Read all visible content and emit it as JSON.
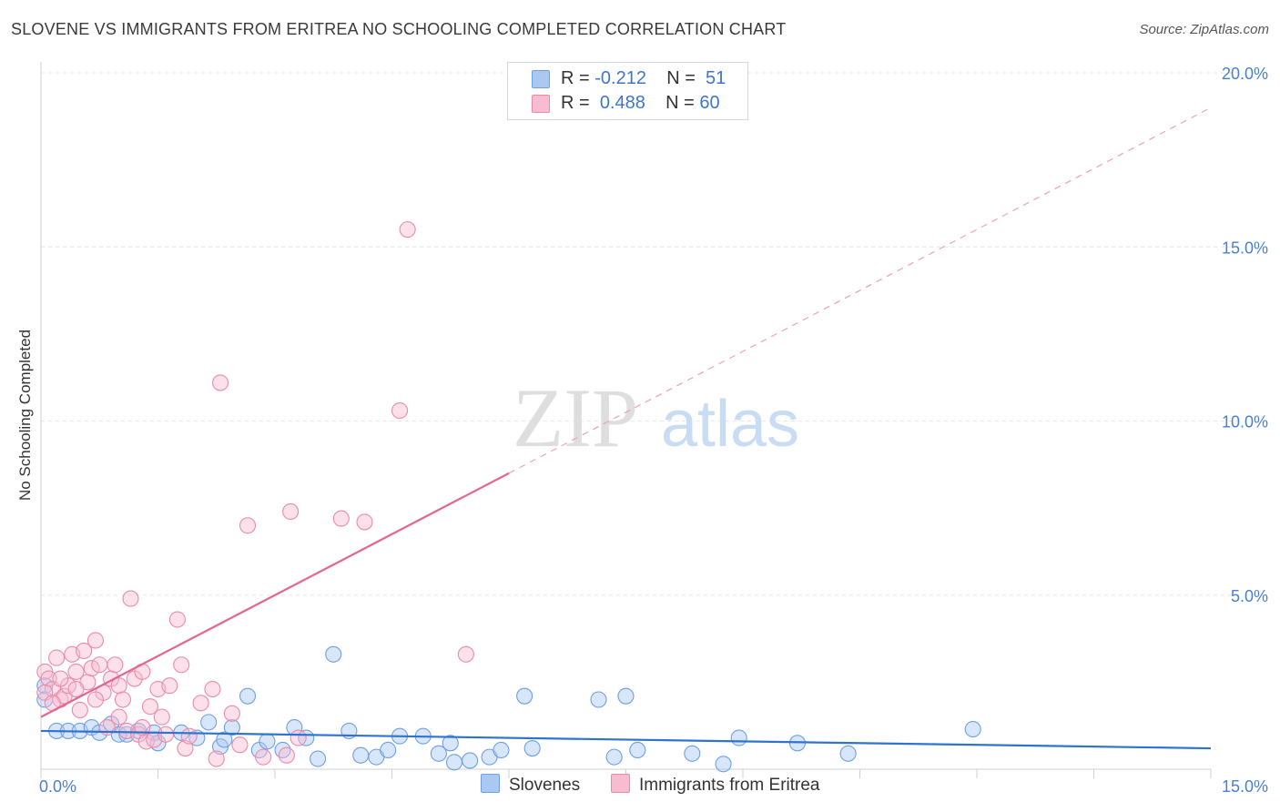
{
  "title": "SLOVENE VS IMMIGRANTS FROM ERITREA NO SCHOOLING COMPLETED CORRELATION CHART",
  "source": "Source: ZipAtlas.com",
  "watermark": {
    "zip": "ZIP",
    "atlas": "atlas"
  },
  "legend_stats": [
    {
      "r_label": "R =",
      "r_value": "-0.212",
      "n_label": "N =",
      "n_value": "51",
      "color": "#a9c8f2",
      "border": "#6f9fe0"
    },
    {
      "r_label": "R =",
      "r_value": "0.488",
      "n_label": "N =",
      "n_value": "60",
      "color": "#f8bcd0",
      "border": "#ea8aa9"
    }
  ],
  "chart_data": {
    "type": "scatter",
    "title": "SLOVENE VS IMMIGRANTS FROM ERITREA NO SCHOOLING COMPLETED CORRELATION CHART",
    "xlabel": "",
    "ylabel": "No Schooling Completed",
    "xlim": [
      0,
      15
    ],
    "ylim": [
      0,
      20
    ],
    "x_ticks": [
      "0.0%",
      "15.0%"
    ],
    "y_ticks": [
      {
        "value": 5,
        "label": "5.0%"
      },
      {
        "value": 10,
        "label": "10.0%"
      },
      {
        "value": 15,
        "label": "15.0%"
      },
      {
        "value": 20,
        "label": "20.0%"
      }
    ],
    "grid": true,
    "legend_position": "bottom-center",
    "series": [
      {
        "name": "Slovenes",
        "color": "#6f9fe0",
        "fill": "rgba(169,200,242,0.45)",
        "trend": {
          "x": [
            0,
            15
          ],
          "y": [
            1.1,
            0.6
          ]
        },
        "points": [
          [
            0.05,
            2.4
          ],
          [
            0.2,
            1.1
          ],
          [
            0.35,
            1.1
          ],
          [
            0.5,
            1.1
          ],
          [
            0.65,
            1.2
          ],
          [
            0.75,
            1.05
          ],
          [
            0.9,
            1.3
          ],
          [
            1.0,
            1.0
          ],
          [
            1.1,
            1.0
          ],
          [
            1.25,
            1.1
          ],
          [
            1.45,
            1.05
          ],
          [
            1.5,
            0.75
          ],
          [
            1.8,
            1.05
          ],
          [
            2.0,
            0.9
          ],
          [
            2.15,
            1.35
          ],
          [
            2.3,
            0.65
          ],
          [
            2.35,
            0.85
          ],
          [
            2.45,
            1.2
          ],
          [
            2.65,
            2.1
          ],
          [
            2.8,
            0.55
          ],
          [
            2.9,
            0.8
          ],
          [
            3.1,
            0.55
          ],
          [
            3.25,
            1.2
          ],
          [
            3.4,
            0.9
          ],
          [
            3.55,
            0.3
          ],
          [
            3.75,
            3.3
          ],
          [
            3.95,
            1.1
          ],
          [
            4.1,
            0.4
          ],
          [
            4.3,
            0.35
          ],
          [
            4.45,
            0.55
          ],
          [
            4.6,
            0.95
          ],
          [
            4.9,
            0.95
          ],
          [
            5.1,
            0.45
          ],
          [
            5.25,
            0.75
          ],
          [
            5.3,
            0.2
          ],
          [
            5.5,
            0.25
          ],
          [
            5.75,
            0.35
          ],
          [
            5.9,
            0.55
          ],
          [
            6.2,
            2.1
          ],
          [
            6.3,
            0.6
          ],
          [
            7.15,
            2.0
          ],
          [
            7.35,
            0.35
          ],
          [
            7.5,
            2.1
          ],
          [
            7.65,
            0.55
          ],
          [
            8.35,
            0.45
          ],
          [
            8.75,
            0.15
          ],
          [
            8.95,
            0.9
          ],
          [
            9.7,
            0.75
          ],
          [
            10.35,
            0.45
          ],
          [
            11.95,
            1.15
          ],
          [
            0.05,
            2.0
          ]
        ]
      },
      {
        "name": "Immigrants from Eritrea",
        "color": "#ea8aa9",
        "fill": "rgba(248,188,208,0.45)",
        "trend_solid": {
          "x": [
            0,
            6.0
          ],
          "y": [
            1.5,
            8.5
          ]
        },
        "trend_dashed": {
          "x": [
            6.0,
            15
          ],
          "y": [
            8.5,
            19.0
          ]
        },
        "points": [
          [
            0.05,
            2.8
          ],
          [
            0.1,
            2.6
          ],
          [
            0.15,
            2.3
          ],
          [
            0.2,
            3.2
          ],
          [
            0.25,
            2.0
          ],
          [
            0.3,
            2.1
          ],
          [
            0.35,
            2.4
          ],
          [
            0.4,
            3.3
          ],
          [
            0.45,
            2.8
          ],
          [
            0.5,
            1.7
          ],
          [
            0.55,
            3.4
          ],
          [
            0.6,
            2.5
          ],
          [
            0.65,
            2.9
          ],
          [
            0.7,
            3.7
          ],
          [
            0.75,
            3.0
          ],
          [
            0.8,
            2.2
          ],
          [
            0.85,
            1.2
          ],
          [
            0.9,
            2.6
          ],
          [
            0.95,
            3.0
          ],
          [
            1.0,
            2.4
          ],
          [
            1.05,
            2.0
          ],
          [
            1.1,
            1.1
          ],
          [
            1.15,
            4.9
          ],
          [
            1.2,
            2.6
          ],
          [
            1.25,
            1.0
          ],
          [
            1.3,
            2.8
          ],
          [
            1.35,
            0.8
          ],
          [
            1.4,
            1.8
          ],
          [
            1.45,
            0.85
          ],
          [
            1.5,
            2.3
          ],
          [
            1.55,
            1.5
          ],
          [
            1.6,
            1.0
          ],
          [
            1.65,
            2.4
          ],
          [
            1.75,
            4.3
          ],
          [
            1.8,
            3.0
          ],
          [
            1.85,
            0.6
          ],
          [
            1.9,
            0.95
          ],
          [
            2.05,
            1.9
          ],
          [
            2.2,
            2.3
          ],
          [
            2.25,
            0.3
          ],
          [
            2.3,
            11.1
          ],
          [
            2.45,
            1.6
          ],
          [
            2.55,
            0.7
          ],
          [
            2.65,
            7.0
          ],
          [
            2.85,
            0.35
          ],
          [
            3.15,
            0.4
          ],
          [
            3.2,
            7.4
          ],
          [
            3.3,
            0.9
          ],
          [
            3.85,
            7.2
          ],
          [
            4.15,
            7.1
          ],
          [
            4.6,
            10.3
          ],
          [
            4.7,
            15.5
          ],
          [
            5.45,
            3.3
          ],
          [
            0.05,
            2.2
          ],
          [
            0.15,
            1.9
          ],
          [
            0.25,
            2.6
          ],
          [
            0.45,
            2.3
          ],
          [
            0.7,
            2.0
          ],
          [
            1.0,
            1.5
          ],
          [
            1.3,
            1.2
          ]
        ]
      }
    ]
  }
}
